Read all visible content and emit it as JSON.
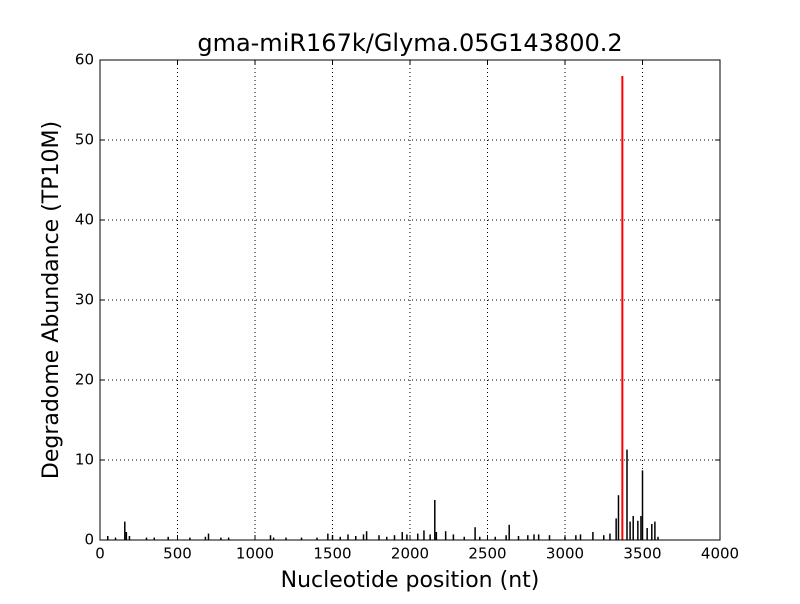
{
  "chart_data": {
    "type": "spike",
    "title": "gma-miR167k/Glyma.05G143800.2",
    "xlabel": "Nucleotide position (nt)",
    "ylabel": "Degradome Abundance (TP10M)",
    "xlim": [
      0,
      4000
    ],
    "xticks": [
      0,
      500,
      1000,
      1500,
      2000,
      2500,
      3000,
      3500,
      4000
    ],
    "ylim": [
      0,
      60
    ],
    "yticks": [
      0,
      10,
      20,
      30,
      40,
      50,
      60
    ],
    "grid": true,
    "series": [
      {
        "color": "#000000",
        "x": [
          50,
          100,
          160,
          170,
          190,
          300,
          350,
          440,
          580,
          680,
          700,
          780,
          830,
          1100,
          1120,
          1200,
          1300,
          1400,
          1470,
          1500,
          1550,
          1600,
          1650,
          1700,
          1720,
          1800,
          1850,
          1900,
          1950,
          1980,
          2050,
          2090,
          2130,
          2160,
          2170,
          2230,
          2280,
          2350,
          2420,
          2450,
          2550,
          2620,
          2640,
          2700,
          2760,
          2800,
          2830,
          2900,
          3000,
          3070,
          3100,
          3180,
          3250,
          3290,
          3330,
          3345,
          3400,
          3420,
          3440,
          3470,
          3490,
          3500,
          3530,
          3560,
          3580,
          3600
        ],
        "values": [
          0.5,
          0.3,
          2.3,
          1.0,
          0.5,
          0.3,
          0.3,
          0.4,
          0.3,
          0.4,
          0.8,
          0.3,
          0.3,
          0.6,
          0.3,
          0.3,
          0.3,
          0.3,
          0.8,
          0.6,
          0.4,
          0.7,
          0.5,
          0.7,
          1.1,
          0.6,
          0.4,
          0.6,
          1.0,
          0.7,
          0.8,
          1.2,
          0.7,
          5.0,
          1.0,
          1.1,
          0.7,
          0.4,
          1.6,
          0.4,
          0.4,
          0.6,
          1.9,
          0.5,
          0.6,
          0.7,
          0.7,
          0.6,
          0.4,
          0.6,
          0.7,
          1.0,
          0.6,
          0.8,
          2.7,
          5.6,
          11.3,
          2.3,
          3.0,
          2.4,
          3.0,
          8.7,
          1.5,
          2.0,
          2.3,
          0.4
        ]
      },
      {
        "color": "#ff0000",
        "x": [
          3370
        ],
        "values": [
          58
        ]
      }
    ]
  }
}
